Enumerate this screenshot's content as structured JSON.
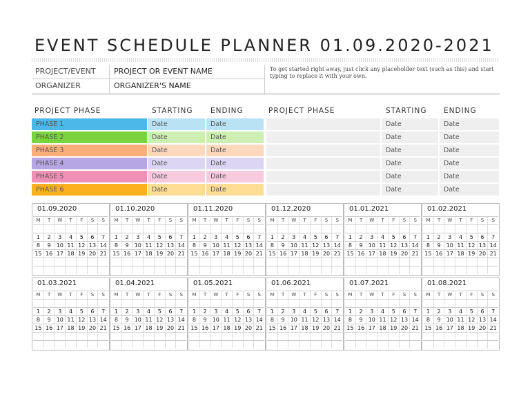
{
  "title": "EVENT SCHEDULE PLANNER 01.09.2020-2021",
  "info": {
    "project_label": "PROJECT/EVENT",
    "project_value": "PROJECT OR EVENT NAME",
    "organizer_label": "ORGANIZER",
    "organizer_value": "ORGANIZER'S NAME",
    "note": "To get started right away, just click any placeholder text (such as this) and start typing to replace it with your own."
  },
  "phases": {
    "headers": {
      "phase": "PROJECT PHASE",
      "starting": "STARTING",
      "ending": "ENDING"
    },
    "left": [
      {
        "name": "PHASE 1",
        "start": "Date",
        "end": "Date",
        "color": "#4ab8e8",
        "light": "#b7e3f5"
      },
      {
        "name": "PHASE 2",
        "start": "Date",
        "end": "Date",
        "color": "#7bd33f",
        "light": "#cdefb2"
      },
      {
        "name": "PHASE 3",
        "start": "Date",
        "end": "Date",
        "color": "#fbad7a",
        "light": "#fdd8bd"
      },
      {
        "name": "PHASE 4",
        "start": "Date",
        "end": "Date",
        "color": "#b6a7e4",
        "light": "#ddd5f4"
      },
      {
        "name": "PHASE 5",
        "start": "Date",
        "end": "Date",
        "color": "#f090b6",
        "light": "#f8cade"
      },
      {
        "name": "PHASE 6",
        "start": "Date",
        "end": "Date",
        "color": "#fbb11d",
        "light": "#fddc93"
      }
    ],
    "right": [
      {
        "name": "",
        "start": "Date",
        "end": "Date"
      },
      {
        "name": "",
        "start": "Date",
        "end": "Date"
      },
      {
        "name": "",
        "start": "Date",
        "end": "Date"
      },
      {
        "name": "",
        "start": "Date",
        "end": "Date"
      },
      {
        "name": "",
        "start": "Date",
        "end": "Date"
      },
      {
        "name": "",
        "start": "Date",
        "end": "Date"
      }
    ]
  },
  "calendar": {
    "weekdays": [
      "M",
      "T",
      "W",
      "T",
      "F",
      "S",
      "S"
    ],
    "weeks": [
      [
        "",
        "",
        "",
        "",
        "",
        "",
        ""
      ],
      [
        "1",
        "2",
        "3",
        "4",
        "5",
        "6",
        "7"
      ],
      [
        "8",
        "9",
        "10",
        "11",
        "12",
        "13",
        "14"
      ],
      [
        "15",
        "16",
        "17",
        "18",
        "19",
        "20",
        "21"
      ],
      [
        "",
        "",
        "",
        "",
        "",
        "",
        ""
      ],
      [
        "",
        "",
        "",
        "",
        "",
        "",
        ""
      ]
    ],
    "months": [
      "01.09.2020",
      "01.10.2020",
      "01.11.2020",
      "01.12.2020",
      "01.01.2021",
      "01.02.2021",
      "01.03.2021",
      "01.04.2021",
      "01.05.2021",
      "01.06.2021",
      "01.07.2021",
      "01.08.2021"
    ]
  }
}
